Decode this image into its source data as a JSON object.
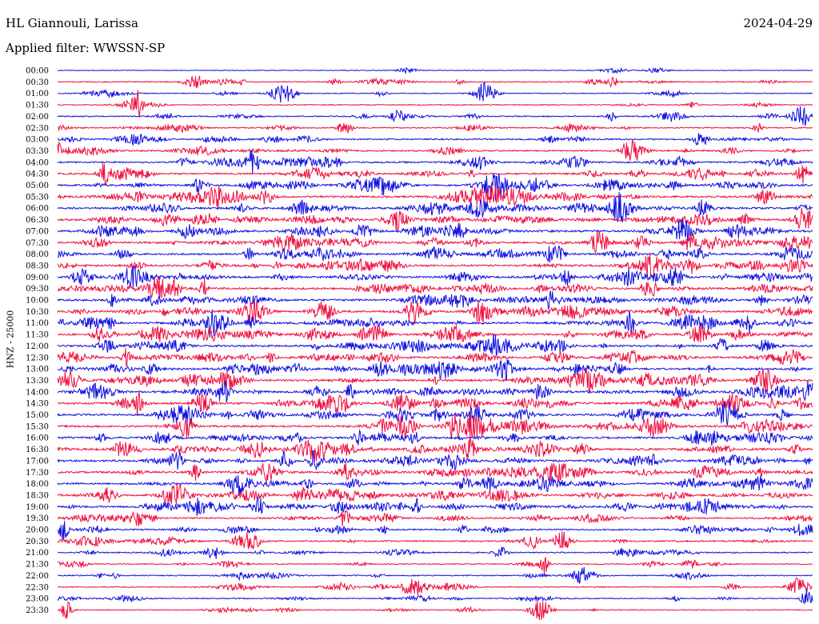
{
  "header": {
    "station": "HL Giannouli, Larissa",
    "date": "2024-04-29",
    "filter": "Applied filter: WWSSN-SP"
  },
  "chart_data": {
    "type": "line",
    "ylabel": "HNZ - 25000",
    "x_unit": "minutes",
    "x_range": [
      0,
      30
    ],
    "trace_colors": [
      "#1010e0",
      "#ee1040"
    ],
    "rows": [
      {
        "label": "00:00",
        "activity": 0.05
      },
      {
        "label": "00:30",
        "activity": 0.25
      },
      {
        "label": "01:00",
        "activity": 0.15
      },
      {
        "label": "01:30",
        "activity": 0.2
      },
      {
        "label": "02:00",
        "activity": 0.35
      },
      {
        "label": "02:30",
        "activity": 0.3
      },
      {
        "label": "03:00",
        "activity": 0.45
      },
      {
        "label": "03:30",
        "activity": 0.5
      },
      {
        "label": "04:00",
        "activity": 0.6
      },
      {
        "label": "04:30",
        "activity": 0.7
      },
      {
        "label": "05:00",
        "activity": 0.75
      },
      {
        "label": "05:30",
        "activity": 0.8
      },
      {
        "label": "06:00",
        "activity": 0.85
      },
      {
        "label": "06:30",
        "activity": 0.9
      },
      {
        "label": "07:00",
        "activity": 0.9
      },
      {
        "label": "07:30",
        "activity": 0.85
      },
      {
        "label": "08:00",
        "activity": 0.8
      },
      {
        "label": "08:30",
        "activity": 0.75
      },
      {
        "label": "09:00",
        "activity": 0.8
      },
      {
        "label": "09:30",
        "activity": 0.85
      },
      {
        "label": "10:00",
        "activity": 0.85
      },
      {
        "label": "10:30",
        "activity": 0.9
      },
      {
        "label": "11:00",
        "activity": 0.9
      },
      {
        "label": "11:30",
        "activity": 0.85
      },
      {
        "label": "12:00",
        "activity": 0.85
      },
      {
        "label": "12:30",
        "activity": 0.9
      },
      {
        "label": "13:00",
        "activity": 0.9
      },
      {
        "label": "13:30",
        "activity": 0.9
      },
      {
        "label": "14:00",
        "activity": 0.95
      },
      {
        "label": "14:30",
        "activity": 0.9
      },
      {
        "label": "15:00",
        "activity": 0.85
      },
      {
        "label": "15:30",
        "activity": 0.85
      },
      {
        "label": "16:00",
        "activity": 0.9
      },
      {
        "label": "16:30",
        "activity": 0.95
      },
      {
        "label": "17:00",
        "activity": 0.9
      },
      {
        "label": "17:30",
        "activity": 0.85
      },
      {
        "label": "18:00",
        "activity": 0.8
      },
      {
        "label": "18:30",
        "activity": 0.8
      },
      {
        "label": "19:00",
        "activity": 0.75
      },
      {
        "label": "19:30",
        "activity": 0.6
      },
      {
        "label": "20:00",
        "activity": 0.55
      },
      {
        "label": "20:30",
        "activity": 0.5
      },
      {
        "label": "21:00",
        "activity": 0.35
      },
      {
        "label": "21:30",
        "activity": 0.25
      },
      {
        "label": "22:00",
        "activity": 0.3
      },
      {
        "label": "22:30",
        "activity": 0.25
      },
      {
        "label": "23:00",
        "activity": 0.25
      },
      {
        "label": "23:30",
        "activity": 0.2
      }
    ]
  }
}
